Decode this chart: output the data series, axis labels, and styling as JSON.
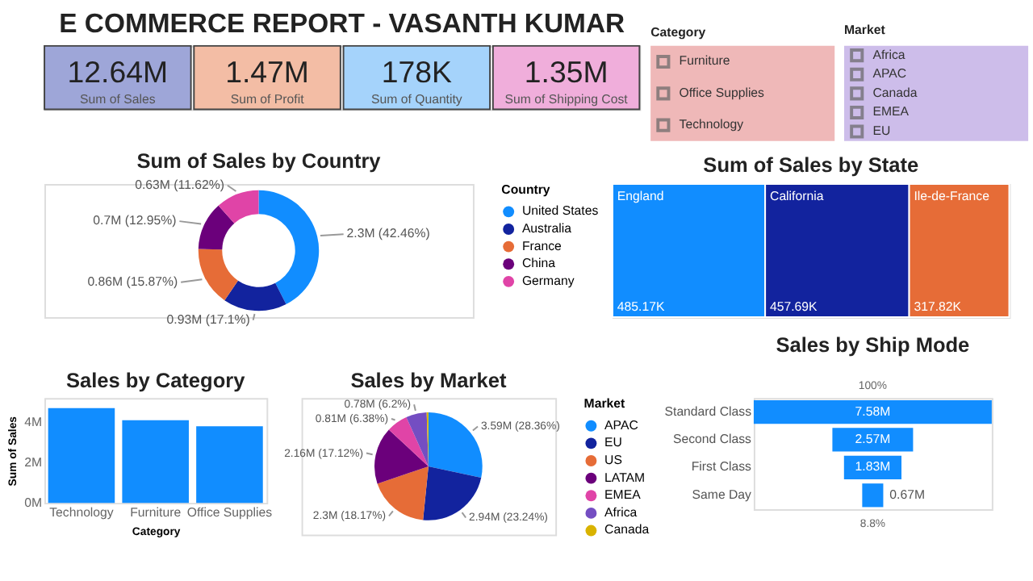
{
  "chart_data": [
    {
      "type": "other",
      "title": "E COMMERCE REPORT - VASANTH KUMAR",
      "categories": [
        "Sum of Sales",
        "Sum of Profit",
        "Sum of Quantity",
        "Sum of Shipping Cost"
      ],
      "value_labels": [
        "12.64M",
        "1.47M",
        "178K",
        "1.35M"
      ],
      "colors": [
        "#9ea6d8",
        "#f3bda5",
        "#a5d3fb",
        "#f0aedb"
      ]
    },
    {
      "type": "other",
      "title": "Category",
      "categories": [
        "Furniture",
        "Office Supplies",
        "Technology"
      ]
    },
    {
      "type": "other",
      "title": "Market",
      "categories": [
        "Africa",
        "APAC",
        "Canada",
        "EMEA",
        "EU"
      ]
    },
    {
      "type": "donut",
      "title": "Sum of Sales by Country",
      "legend_title": "Country",
      "legend": "right",
      "categories": [
        "United States",
        "Australia",
        "France",
        "China",
        "Germany"
      ],
      "values": [
        42.46,
        17.1,
        15.87,
        12.95,
        11.62
      ],
      "colors": [
        "#118dff",
        "#12239e",
        "#e66c37",
        "#6b007b",
        "#e044a7"
      ],
      "value_labels": [
        "2.3M (42.46%)",
        "0.93M (17.1%)",
        "0.86M (15.87%)",
        "0.7M (12.95%)",
        "0.63M (11.62%)"
      ]
    },
    {
      "type": "other",
      "title": "Sum of Sales by State",
      "categories": [
        "England",
        "California",
        "Ile-de-France"
      ],
      "values": [
        485.17,
        457.69,
        317.82
      ],
      "value_labels": [
        "485.17K",
        "457.69K",
        "317.82K"
      ],
      "colors": [
        "#118dff",
        "#12239e",
        "#e66c37"
      ]
    },
    {
      "type": "bar",
      "title": "Sales by Category",
      "xlabel": "Category",
      "ylabel": "Sum of Sales",
      "categories": [
        "Technology",
        "Furniture",
        "Office Supplies"
      ],
      "values": [
        4.7,
        4.1,
        3.8
      ],
      "colors": [
        "#118dff",
        "#118dff",
        "#118dff"
      ],
      "ylim": [
        0,
        5.2
      ],
      "yticks": [
        {
          "value": 0,
          "label": "0M"
        },
        {
          "value": 2,
          "label": "2M"
        },
        {
          "value": 4,
          "label": "4M"
        }
      ],
      "grid": false
    },
    {
      "type": "pie",
      "title": "Sales by Market",
      "legend_title": "Market",
      "legend": "right",
      "categories": [
        "APAC",
        "EU",
        "US",
        "LATAM",
        "EMEA",
        "Africa",
        "Canada"
      ],
      "values": [
        28.36,
        23.24,
        18.17,
        17.12,
        6.38,
        6.2,
        0.53
      ],
      "colors": [
        "#118dff",
        "#12239e",
        "#e66c37",
        "#6b007b",
        "#e044a7",
        "#744ec2",
        "#d9b300"
      ],
      "value_labels": [
        "3.59M (28.36%)",
        "2.94M (23.24%)",
        "2.3M (18.17%)",
        "2.16M (17.12%)",
        "0.81M (6.38%)",
        "0.78M (6.2%)",
        null
      ]
    },
    {
      "type": "other",
      "title": "Sales by Ship Mode",
      "categories": [
        "Standard Class",
        "Second Class",
        "First Class",
        "Same Day"
      ],
      "values": [
        7.58,
        2.57,
        1.83,
        0.67
      ],
      "value_labels": [
        "7.58M",
        "2.57M",
        "1.83M",
        "0.67M"
      ],
      "colors": [
        "#118dff",
        "#118dff",
        "#118dff",
        "#118dff"
      ],
      "annotations": [
        "100%",
        "8.8%"
      ]
    }
  ]
}
